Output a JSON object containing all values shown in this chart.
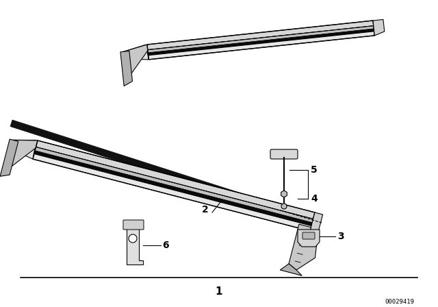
{
  "background_color": "#ffffff",
  "line_color": "#000000",
  "fig_width": 6.4,
  "fig_height": 4.48,
  "dpi": 100,
  "bottom_label": "1",
  "part_number": "00029419",
  "label_fontsize": 10
}
